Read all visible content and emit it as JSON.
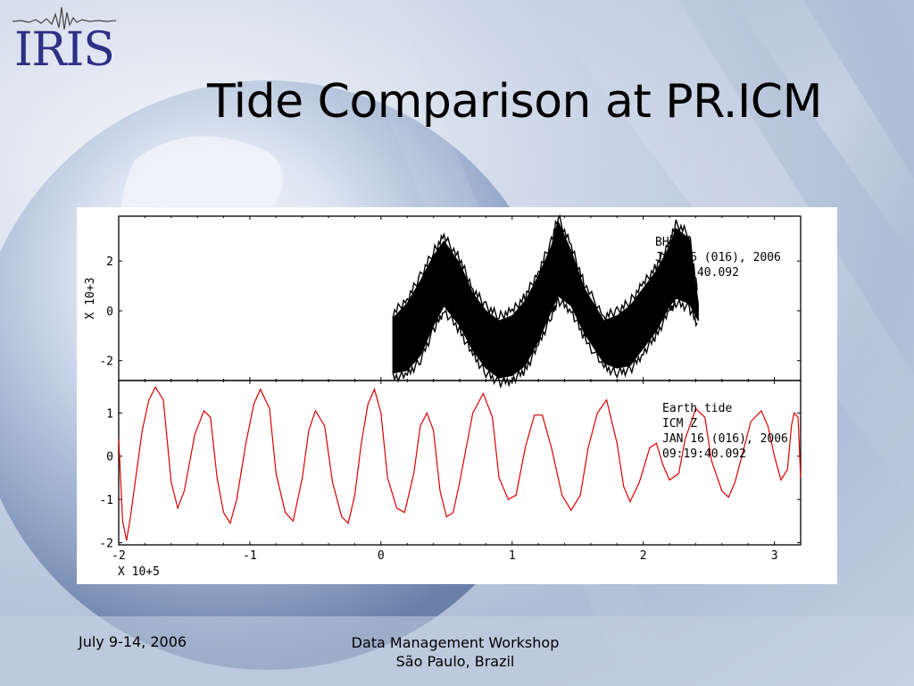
{
  "slide": {
    "title": "Tide Comparison at PR.ICM",
    "logo_text": "IRIS",
    "footer_date": "July 9-14, 2006",
    "footer_event_line1": "Data Management Workshop",
    "footer_event_line2": "São Paulo, Brazil"
  },
  "chart_data": {
    "type": "line",
    "xlabel": "X 10+5",
    "xlim": [
      -2,
      3.2
    ],
    "x_ticks": [
      "-2",
      "-1",
      "0",
      "1",
      "2",
      "3"
    ],
    "panels": [
      {
        "name": "BHZ",
        "ylabel": "X 10+3",
        "ylim": [
          -2.8,
          3.8
        ],
        "y_ticks": [
          "2",
          "0",
          "-2"
        ],
        "annotation": [
          "BHZ",
          "JAN 16 (016), 2006",
          "09:19:40.092"
        ],
        "series": [
          {
            "color": "#000000",
            "envelope": {
              "x": [
                0.09,
                0.2,
                0.3,
                0.4,
                0.48,
                0.6,
                0.7,
                0.8,
                0.9,
                1.0,
                1.1,
                1.2,
                1.3,
                1.35,
                1.45,
                1.55,
                1.7,
                1.8,
                1.9,
                2.0,
                2.1,
                2.2,
                2.25,
                2.35,
                2.42
              ],
              "upper": [
                -0.3,
                0.3,
                1.2,
                2.2,
                2.8,
                1.9,
                0.7,
                0.0,
                -0.4,
                -0.2,
                0.4,
                1.4,
                2.6,
                3.6,
                2.4,
                0.9,
                -0.4,
                -0.2,
                0.2,
                0.9,
                1.6,
                2.6,
                3.3,
                2.9,
                0.3
              ],
              "lower": [
                -2.5,
                -2.4,
                -1.8,
                -0.6,
                0.2,
                -0.6,
                -1.6,
                -2.3,
                -2.7,
                -2.6,
                -2.2,
                -1.2,
                0.0,
                0.6,
                0.2,
                -0.9,
                -2.1,
                -2.3,
                -2.2,
                -1.5,
                -0.8,
                0.2,
                0.5,
                0.3,
                -0.4
              ]
            }
          }
        ]
      },
      {
        "name": "Earth tide",
        "ylabel": "",
        "ylim": [
          -2.05,
          1.75
        ],
        "y_ticks": [
          "1",
          "0",
          "-1",
          "-2"
        ],
        "annotation": [
          "Earth tide",
          "ICM Z",
          "JAN 16 (016), 2006",
          "09:19:40.092"
        ],
        "series": [
          {
            "color": "#dd0000",
            "x": [
              -2.0,
              -1.97,
              -1.94,
              -1.91,
              -1.87,
              -1.82,
              -1.77,
              -1.72,
              -1.66,
              -1.6,
              -1.55,
              -1.5,
              -1.42,
              -1.35,
              -1.3,
              -1.25,
              -1.2,
              -1.15,
              -1.1,
              -1.03,
              -0.97,
              -0.92,
              -0.85,
              -0.8,
              -0.73,
              -0.67,
              -0.6,
              -0.55,
              -0.5,
              -0.43,
              -0.37,
              -0.3,
              -0.25,
              -0.2,
              -0.15,
              -0.1,
              -0.05,
              0.0,
              0.05,
              0.12,
              0.18,
              0.25,
              0.3,
              0.35,
              0.4,
              0.45,
              0.5,
              0.55,
              0.6,
              0.7,
              0.78,
              0.85,
              0.9,
              0.97,
              1.03,
              1.1,
              1.17,
              1.23,
              1.3,
              1.38,
              1.45,
              1.52,
              1.58,
              1.65,
              1.72,
              1.8,
              1.85,
              1.9,
              1.97,
              2.05,
              2.1,
              2.15,
              2.2,
              2.27,
              2.32,
              2.4,
              2.47,
              2.52,
              2.6,
              2.65,
              2.7,
              2.76,
              2.82,
              2.9,
              2.95,
              3.0,
              3.05,
              3.1,
              3.13,
              3.15,
              3.18,
              3.2
            ],
            "y": [
              0.4,
              -1.5,
              -1.95,
              -1.4,
              -0.5,
              0.6,
              1.3,
              1.6,
              1.3,
              -0.6,
              -1.2,
              -0.8,
              0.5,
              1.05,
              0.9,
              -0.5,
              -1.3,
              -1.55,
              -1.0,
              0.3,
              1.2,
              1.55,
              1.1,
              -0.4,
              -1.3,
              -1.5,
              -0.5,
              0.6,
              1.05,
              0.7,
              -0.6,
              -1.4,
              -1.55,
              -0.9,
              0.3,
              1.2,
              1.55,
              1.0,
              -0.5,
              -1.2,
              -1.3,
              -0.4,
              0.7,
              1.0,
              0.6,
              -0.8,
              -1.4,
              -1.3,
              -0.6,
              1.0,
              1.45,
              0.9,
              -0.5,
              -1.0,
              -0.9,
              0.2,
              0.95,
              0.95,
              0.2,
              -0.9,
              -1.25,
              -0.9,
              0.2,
              1.0,
              1.3,
              0.3,
              -0.7,
              -1.05,
              -0.6,
              0.2,
              0.3,
              -0.2,
              -0.55,
              -0.4,
              0.4,
              1.1,
              0.9,
              -0.1,
              -0.8,
              -0.95,
              -0.6,
              0.1,
              0.8,
              1.05,
              0.7,
              0.0,
              -0.55,
              -0.3,
              0.7,
              1.0,
              0.9,
              -0.5
            ]
          }
        ]
      }
    ]
  }
}
